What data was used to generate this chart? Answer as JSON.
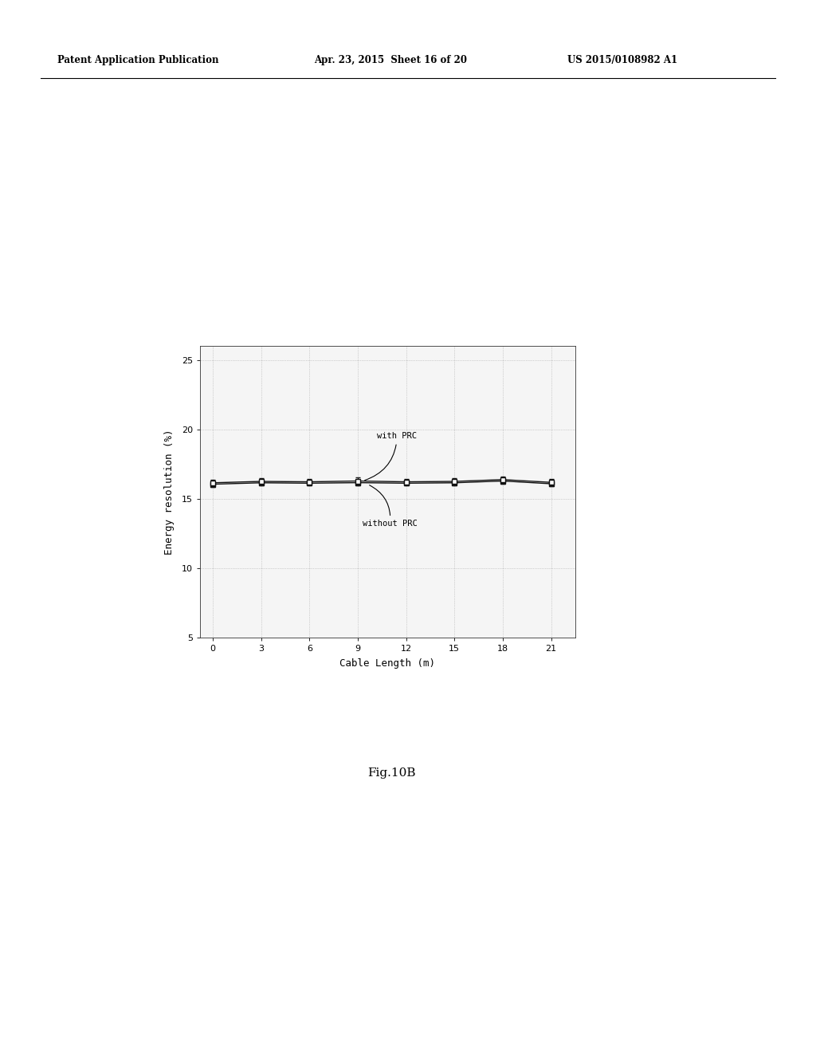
{
  "x_values": [
    0,
    3,
    6,
    9,
    12,
    15,
    18,
    21
  ],
  "with_prc_y": [
    16.15,
    16.25,
    16.22,
    16.28,
    16.22,
    16.25,
    16.38,
    16.18
  ],
  "without_prc_y": [
    16.05,
    16.15,
    16.12,
    16.16,
    16.12,
    16.15,
    16.28,
    16.08
  ],
  "with_prc_err": [
    0.22,
    0.22,
    0.22,
    0.28,
    0.22,
    0.22,
    0.22,
    0.22
  ],
  "without_prc_err": [
    0.18,
    0.18,
    0.18,
    0.22,
    0.18,
    0.18,
    0.18,
    0.18
  ],
  "xlabel": "Cable Length (m)",
  "ylabel": "Energy resolution (%)",
  "xlim": [
    -0.8,
    22.5
  ],
  "ylim": [
    5,
    26
  ],
  "xticks": [
    0,
    3,
    6,
    9,
    12,
    15,
    18,
    21
  ],
  "yticks": [
    5,
    10,
    15,
    20,
    25
  ],
  "header_text": "Patent Application Publication",
  "header_date": "Apr. 23, 2015  Sheet 16 of 20",
  "header_patent": "US 2015/0108982 A1",
  "footer_text": "Fig.10B",
  "annotation_with": "with PRC",
  "annotation_without": "without PRC",
  "fig_width": 10.24,
  "fig_height": 13.2
}
